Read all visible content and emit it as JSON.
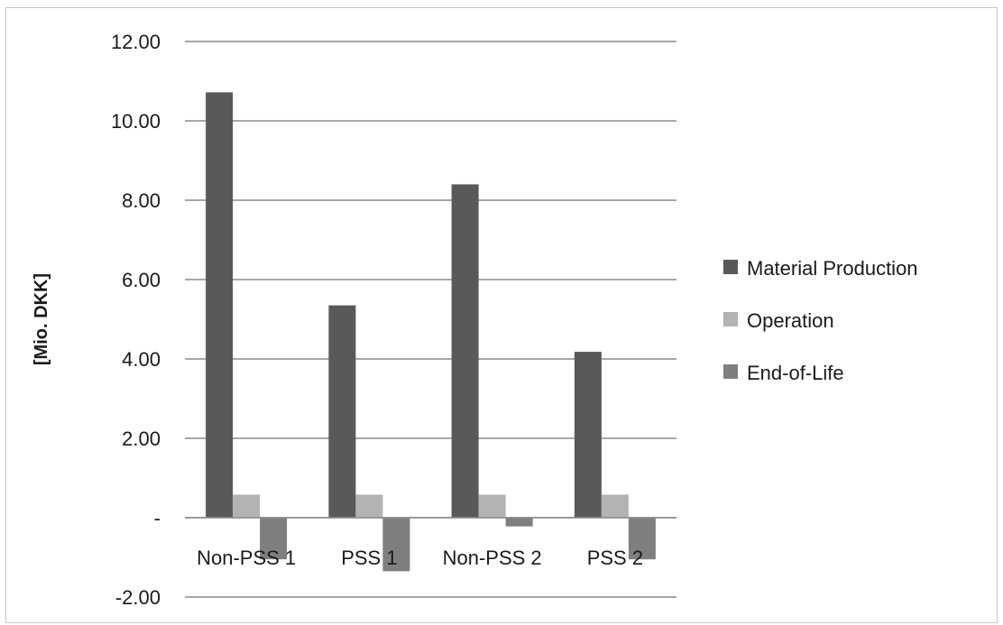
{
  "chart_data": {
    "type": "bar",
    "ylabel": "[Mio. DKK]",
    "xlabel": "",
    "ylim": [
      -2,
      12
    ],
    "ytick_values": [
      -2,
      0,
      2,
      4,
      6,
      8,
      10,
      12
    ],
    "ytick_labels": [
      "-2.00",
      "-",
      "2.00",
      "4.00",
      "6.00",
      "8.00",
      "10.00",
      "12.00"
    ],
    "categories": [
      "Non-PSS 1",
      "PSS 1",
      "Non-PSS 2",
      "PSS 2"
    ],
    "series": [
      {
        "name": "Material Production",
        "color": "#595959",
        "values": [
          10.72,
          5.35,
          8.4,
          4.18
        ]
      },
      {
        "name": "Operation",
        "color": "#b3b3b3",
        "values": [
          0.58,
          0.58,
          0.58,
          0.58
        ]
      },
      {
        "name": "End-of-Life",
        "color": "#7f7f7f",
        "values": [
          -1.05,
          -1.35,
          -0.22,
          -1.05
        ]
      }
    ],
    "grid": true,
    "legend_position": "right"
  }
}
